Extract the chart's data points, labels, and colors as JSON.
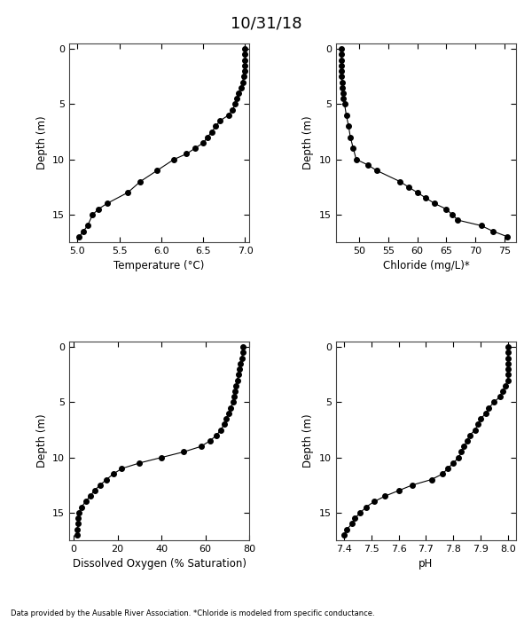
{
  "title": "10/31/18",
  "footnote": "Data provided by the Ausable River Association. *Chloride is modeled from specific conductance.",
  "temp": {
    "depth": [
      17,
      16.5,
      16,
      15,
      14.5,
      14,
      13,
      12,
      11,
      10,
      9.5,
      9,
      8.5,
      8,
      7.5,
      7,
      6.5,
      6,
      5.5,
      5,
      4.5,
      4,
      3.5,
      3,
      2.5,
      2,
      1.5,
      1,
      0.5,
      0
    ],
    "values": [
      5.02,
      5.07,
      5.12,
      5.18,
      5.25,
      5.35,
      5.6,
      5.75,
      5.95,
      6.15,
      6.3,
      6.4,
      6.5,
      6.55,
      6.6,
      6.65,
      6.7,
      6.8,
      6.85,
      6.88,
      6.9,
      6.92,
      6.95,
      6.97,
      6.98,
      6.99,
      7.0,
      7.0,
      7.0,
      7.0
    ],
    "xlabel": "Temperature (°C)",
    "xlim": [
      4.9,
      7.05
    ],
    "xticks": [
      5.0,
      5.5,
      6.0,
      6.5,
      7.0
    ]
  },
  "chloride": {
    "depth": [
      17,
      16.5,
      16,
      15.5,
      15,
      14.5,
      14,
      13.5,
      13,
      12.5,
      12,
      11,
      10.5,
      10,
      9,
      8,
      7,
      6,
      5,
      4.5,
      4,
      3.5,
      3,
      2.5,
      2,
      1.5,
      1,
      0.5,
      0
    ],
    "values": [
      75.5,
      73,
      71,
      67,
      66,
      65,
      63,
      61.5,
      60,
      58.5,
      57,
      53,
      51.5,
      49.5,
      49,
      48.5,
      48.2,
      47.8,
      47.5,
      47.3,
      47.2,
      47.1,
      47.05,
      47.0,
      47.0,
      47.0,
      47.0,
      47.0,
      47.0
    ],
    "xlabel": "Chloride (mg/L)*",
    "xlim": [
      46,
      77
    ],
    "xticks": [
      50,
      55,
      60,
      65,
      70,
      75
    ]
  },
  "do": {
    "depth": [
      17,
      16.5,
      16,
      15.5,
      15,
      14.5,
      14,
      13.5,
      13,
      12.5,
      12,
      11.5,
      11,
      10.5,
      10,
      9.5,
      9,
      8.5,
      8,
      7.5,
      7,
      6.5,
      6,
      5.5,
      5,
      4.5,
      4,
      3.5,
      3,
      2.5,
      2,
      1.5,
      1,
      0.5,
      0
    ],
    "values": [
      1.5,
      1.8,
      2.0,
      2.2,
      2.5,
      3.5,
      5.5,
      7.5,
      9.5,
      12.0,
      15.0,
      18.0,
      22.0,
      30.0,
      40.0,
      50.0,
      58.0,
      62.0,
      65.0,
      67.0,
      68.5,
      69.5,
      70.5,
      71.5,
      72.5,
      73.0,
      73.5,
      74.0,
      74.5,
      75.0,
      75.5,
      76.0,
      76.5,
      77.0,
      77.0
    ],
    "xlabel": "Dissolved Oxygen (% Saturation)",
    "xlim": [
      -2,
      80
    ],
    "xticks": [
      0,
      20,
      40,
      60,
      80
    ]
  },
  "ph": {
    "depth": [
      17,
      16.5,
      16,
      15.5,
      15,
      14.5,
      14,
      13.5,
      13,
      12.5,
      12,
      11.5,
      11,
      10.5,
      10,
      9.5,
      9,
      8.5,
      8,
      7.5,
      7,
      6.5,
      6,
      5.5,
      5,
      4.5,
      4,
      3.5,
      3,
      2.5,
      2,
      1.5,
      1,
      0.5,
      0
    ],
    "values": [
      7.4,
      7.41,
      7.43,
      7.44,
      7.46,
      7.48,
      7.51,
      7.55,
      7.6,
      7.65,
      7.72,
      7.76,
      7.78,
      7.8,
      7.82,
      7.83,
      7.84,
      7.85,
      7.86,
      7.88,
      7.89,
      7.9,
      7.92,
      7.93,
      7.95,
      7.97,
      7.98,
      7.99,
      8.0,
      8.0,
      8.0,
      8.0,
      8.0,
      8.0,
      8.0
    ],
    "xlabel": "pH",
    "xlim": [
      7.37,
      8.03
    ],
    "xticks": [
      7.4,
      7.5,
      7.6,
      7.7,
      7.8,
      7.9,
      8.0
    ]
  },
  "ylim": [
    17.5,
    -0.5
  ],
  "yticks": [
    0,
    5,
    10,
    15
  ],
  "ylabel": "Depth (m)",
  "marker": "o",
  "markersize": 4,
  "linewidth": 0.8,
  "color": "black"
}
